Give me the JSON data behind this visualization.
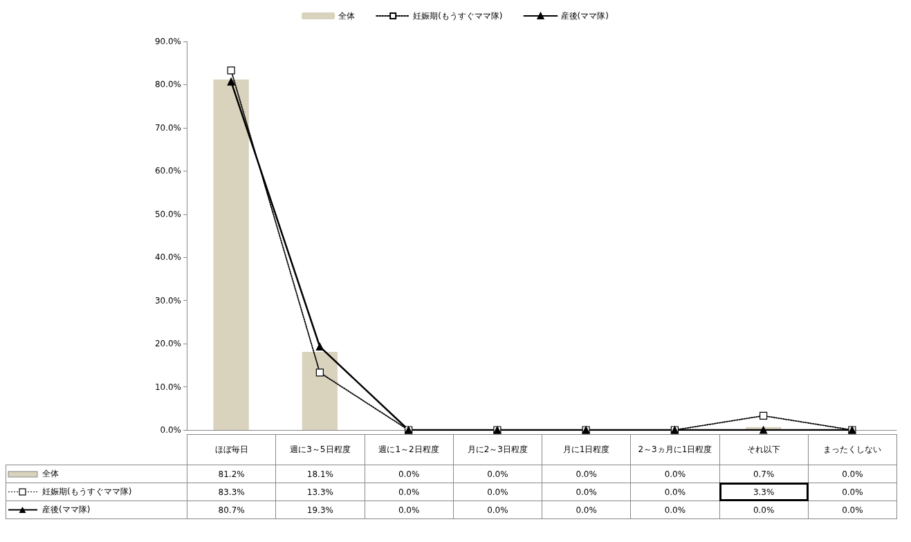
{
  "chart_data": {
    "type": "bar",
    "categories": [
      "ほぼ毎日",
      "週に3～5日程度",
      "週に1～2日程度",
      "月に2～3日程度",
      "月に1日程度",
      "2～3ヵ月に1日程度",
      "それ以下",
      "まったくしない"
    ],
    "series": [
      {
        "name": "全体",
        "color": "#d9d2bd",
        "values": [
          81.2,
          18.1,
          0.0,
          0.0,
          0.0,
          0.0,
          0.7,
          0.0
        ],
        "value_labels": [
          "81.2%",
          "18.1%",
          "0.0%",
          "0.0%",
          "0.0%",
          "0.0%",
          "0.7%",
          "0.0%"
        ]
      },
      {
        "name": "妊娠期(もうすぐママ隊)",
        "type": "line",
        "color": "#000000",
        "marker": "square",
        "line_style": "dotted",
        "values": [
          83.3,
          13.3,
          0.0,
          0.0,
          0.0,
          0.0,
          3.3,
          0.0
        ],
        "value_labels": [
          "83.3%",
          "13.3%",
          "0.0%",
          "0.0%",
          "0.0%",
          "0.0%",
          "3.3%",
          "0.0%"
        ]
      },
      {
        "name": "産後(ママ隊)",
        "type": "line",
        "color": "#000000",
        "marker": "triangle",
        "line_style": "solid",
        "values": [
          80.7,
          19.3,
          0.0,
          0.0,
          0.0,
          0.0,
          0.0,
          0.0
        ],
        "value_labels": [
          "80.7%",
          "19.3%",
          "0.0%",
          "0.0%",
          "0.0%",
          "0.0%",
          "0.0%",
          "0.0%"
        ]
      }
    ],
    "ylim": [
      0,
      90
    ],
    "yticks": [
      {
        "value": 0,
        "label": "0.0%"
      },
      {
        "value": 10,
        "label": "10.0%"
      },
      {
        "value": 20,
        "label": "20.0%"
      },
      {
        "value": 30,
        "label": "30.0%"
      },
      {
        "value": 40,
        "label": "40.0%"
      },
      {
        "value": 50,
        "label": "50.0%"
      },
      {
        "value": 60,
        "label": "60.0%"
      },
      {
        "value": 70,
        "label": "70.0%"
      },
      {
        "value": 80,
        "label": "80.0%"
      },
      {
        "value": 90,
        "label": "90.0%"
      }
    ],
    "grid": false,
    "legend": "top",
    "tick_labels": "y"
  }
}
